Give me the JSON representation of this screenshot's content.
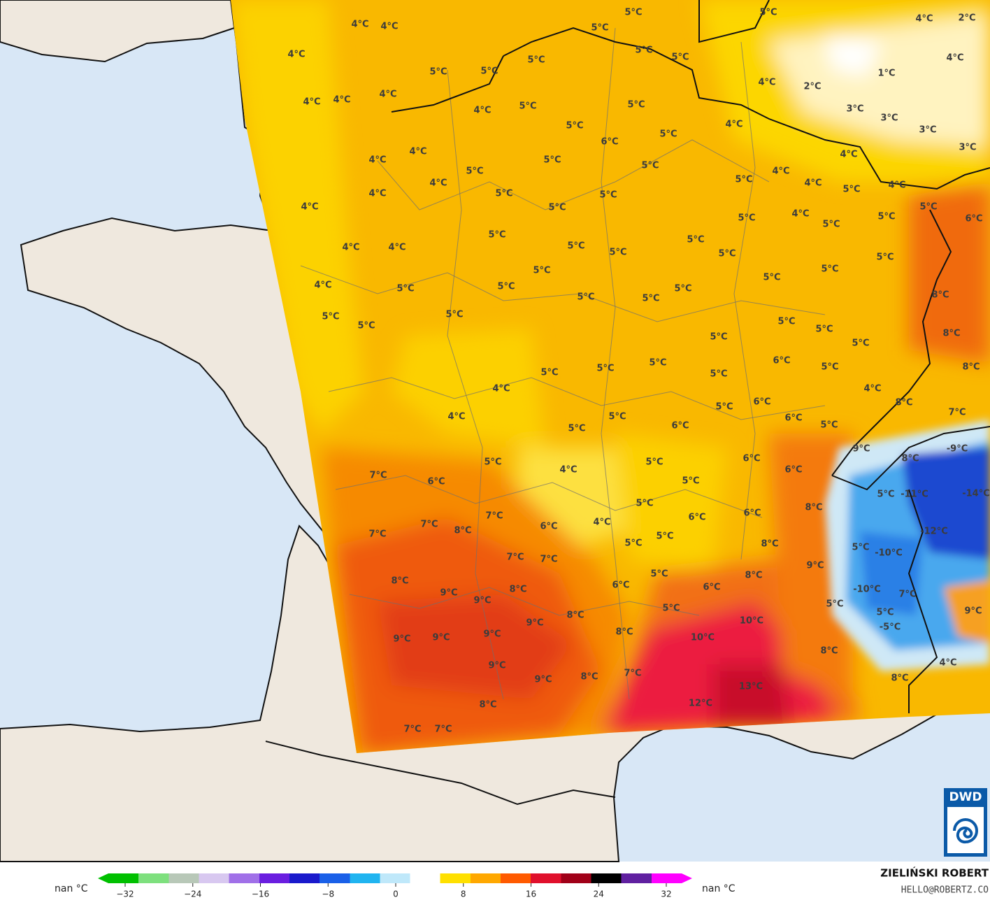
{
  "map": {
    "labels": [
      "4°C",
      "4°C",
      "4°C",
      "5°C",
      "5°C",
      "4°C",
      "4°C",
      "4°C",
      "5°C",
      "5°C",
      "5°C",
      "5°C",
      "5°C",
      "5°C",
      "4°C",
      "2°C",
      "4°C",
      "1°C",
      "2°C",
      "4°C",
      "3°C",
      "3°C",
      "3°C",
      "3°C",
      "4°C",
      "5°C",
      "5°C",
      "5°C",
      "5°C",
      "4°C",
      "6°C",
      "4°C",
      "4°C",
      "5°C",
      "5°C",
      "5°C",
      "4°C",
      "4°C",
      "5°C",
      "4°C",
      "5°C",
      "4°C",
      "5°C",
      "6°C",
      "4°C",
      "4°C",
      "5°C",
      "5°C",
      "5°C",
      "4°C",
      "4°C",
      "4°C",
      "5°C",
      "5°C",
      "5°C",
      "5°C",
      "5°C",
      "5°C",
      "4°C",
      "5°C",
      "5°C",
      "4°C",
      "5°C",
      "5°C",
      "5°C",
      "5°C",
      "5°C",
      "5°C",
      "5°C",
      "5°C",
      "5°C",
      "5°C",
      "5°C",
      "5°C",
      "8°C",
      "5°C",
      "5°C",
      "5°C",
      "5°C",
      "8°C",
      "8°C",
      "5°C",
      "5°C",
      "5°C",
      "5°C",
      "6°C",
      "5°C",
      "4°C",
      "4°C",
      "8°C",
      "7°C",
      "4°C",
      "5°C",
      "5°C",
      "6°C",
      "5°C",
      "6°C",
      "6°C",
      "5°C",
      "9°C",
      "8°C",
      "-9°C",
      "5°C",
      "4°C",
      "5°C",
      "5°C",
      "6°C",
      "6°C",
      "7°C",
      "6°C",
      "7°C",
      "7°C",
      "6°C",
      "4°C",
      "5°C",
      "6°C",
      "6°C",
      "8°C",
      "5°C",
      "-11°C",
      "-14°C",
      "-12°C",
      "7°C",
      "8°C",
      "7°C",
      "7°C",
      "5°C",
      "5°C",
      "8°C",
      "-10°C",
      "5°C",
      "9°C",
      "5°C",
      "6°C",
      "6°C",
      "8°C",
      "8°C",
      "9°C",
      "9°C",
      "8°C",
      "-10°C",
      "7°C",
      "5°C",
      "5°C",
      "9°C",
      "9°C",
      "8°C",
      "5°C",
      "10°C",
      "10°C",
      "8°C",
      "-5°C",
      "9°C",
      "9°C",
      "9°C",
      "9°C",
      "9°C",
      "8°C",
      "7°C",
      "8°C",
      "4°C",
      "8°C",
      "13°C",
      "12°C",
      "8°C",
      "7°C",
      "7°C"
    ]
  },
  "colorbar": {
    "lim": [
      -32,
      32
    ],
    "ticks": [
      {
        "value": -32,
        "label": "−32"
      },
      {
        "value": -24,
        "label": "−24"
      },
      {
        "value": -16,
        "label": "−16"
      },
      {
        "value": -8,
        "label": "−8"
      },
      0,
      8,
      16,
      24,
      32
    ],
    "colors": [
      "#00c000",
      "#7ee07e",
      "#b8c8b8",
      "#d8c8f0",
      "#a070e8",
      "#6a1ee0",
      "#1a1acc",
      "#1a60e8",
      "#20b4f0",
      "#bfe8fa",
      "#ffffff",
      "#ffe000",
      "#ffa800",
      "#ff5a00",
      "#e0102c",
      "#a00018",
      "#000000",
      "#6020a0",
      "#ff00ff"
    ],
    "left_label": "nan °C",
    "right_label": "nan °C"
  },
  "credit": {
    "author": "ZIELIŃSKI ROBERT",
    "contact": "HELLO@ROBERTZ.CO",
    "logo": "DWD"
  }
}
